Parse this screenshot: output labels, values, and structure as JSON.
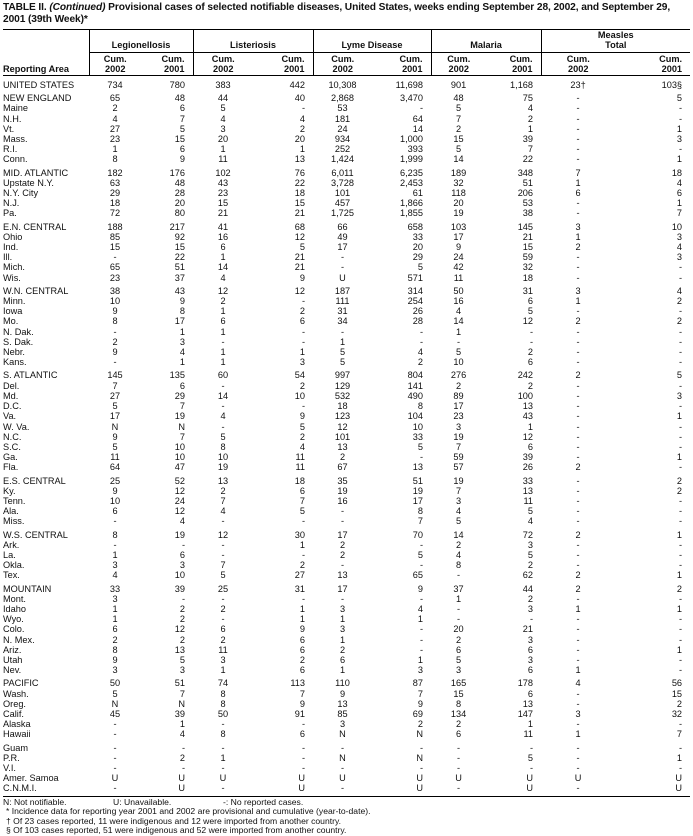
{
  "title": {
    "prefix": "TABLE II. ",
    "continued": "(Continued)",
    "text": " Provisional cases of selected notifiable diseases, United States, weeks ending September 28, 2002, and September 29, 2001 (39th Week)*"
  },
  "header": {
    "area_label": "Reporting Area",
    "diseases": [
      "Legionellosis",
      "Listeriosis",
      "Lyme Disease",
      "Malaria",
      "Measles\nTotal"
    ],
    "cum2002": "Cum.\n2002",
    "cum2001": "Cum.\n2001"
  },
  "groups": [
    [
      [
        "UNITED STATES",
        "734",
        "780",
        "383",
        "442",
        "10,308",
        "11,698",
        "901",
        "1,168",
        "23†",
        "103§"
      ]
    ],
    [
      [
        "NEW ENGLAND",
        "65",
        "48",
        "44",
        "40",
        "2,868",
        "3,470",
        "48",
        "75",
        "-",
        "5"
      ],
      [
        "Maine",
        "2",
        "6",
        "5",
        "-",
        "53",
        "-",
        "5",
        "4",
        "-",
        "-"
      ],
      [
        "N.H.",
        "4",
        "7",
        "4",
        "4",
        "181",
        "64",
        "7",
        "2",
        "-",
        "-"
      ],
      [
        "Vt.",
        "27",
        "5",
        "3",
        "2",
        "24",
        "14",
        "2",
        "1",
        "-",
        "1"
      ],
      [
        "Mass.",
        "23",
        "15",
        "20",
        "20",
        "934",
        "1,000",
        "15",
        "39",
        "-",
        "3"
      ],
      [
        "R.I.",
        "1",
        "6",
        "1",
        "1",
        "252",
        "393",
        "5",
        "7",
        "-",
        "-"
      ],
      [
        "Conn.",
        "8",
        "9",
        "11",
        "13",
        "1,424",
        "1,999",
        "14",
        "22",
        "-",
        "1"
      ]
    ],
    [
      [
        "MID. ATLANTIC",
        "182",
        "176",
        "102",
        "76",
        "6,011",
        "6,235",
        "189",
        "348",
        "7",
        "18"
      ],
      [
        "Upstate N.Y.",
        "63",
        "48",
        "43",
        "22",
        "3,728",
        "2,453",
        "32",
        "51",
        "1",
        "4"
      ],
      [
        "N.Y. City",
        "29",
        "28",
        "23",
        "18",
        "101",
        "61",
        "118",
        "206",
        "6",
        "6"
      ],
      [
        "N.J.",
        "18",
        "20",
        "15",
        "15",
        "457",
        "1,866",
        "20",
        "53",
        "-",
        "1"
      ],
      [
        "Pa.",
        "72",
        "80",
        "21",
        "21",
        "1,725",
        "1,855",
        "19",
        "38",
        "-",
        "7"
      ]
    ],
    [
      [
        "E.N. CENTRAL",
        "188",
        "217",
        "41",
        "68",
        "66",
        "658",
        "103",
        "145",
        "3",
        "10"
      ],
      [
        "Ohio",
        "85",
        "92",
        "16",
        "12",
        "49",
        "33",
        "17",
        "21",
        "1",
        "3"
      ],
      [
        "Ind.",
        "15",
        "15",
        "6",
        "5",
        "17",
        "20",
        "9",
        "15",
        "2",
        "4"
      ],
      [
        "Ill.",
        "-",
        "22",
        "1",
        "21",
        "-",
        "29",
        "24",
        "59",
        "-",
        "3"
      ],
      [
        "Mich.",
        "65",
        "51",
        "14",
        "21",
        "-",
        "5",
        "42",
        "32",
        "-",
        "-"
      ],
      [
        "Wis.",
        "23",
        "37",
        "4",
        "9",
        "U",
        "571",
        "11",
        "18",
        "-",
        "-"
      ]
    ],
    [
      [
        "W.N. CENTRAL",
        "38",
        "43",
        "12",
        "12",
        "187",
        "314",
        "50",
        "31",
        "3",
        "4"
      ],
      [
        "Minn.",
        "10",
        "9",
        "2",
        "-",
        "111",
        "254",
        "16",
        "6",
        "1",
        "2"
      ],
      [
        "Iowa",
        "9",
        "8",
        "1",
        "2",
        "31",
        "26",
        "4",
        "5",
        "-",
        "-"
      ],
      [
        "Mo.",
        "8",
        "17",
        "6",
        "6",
        "34",
        "28",
        "14",
        "12",
        "2",
        "2"
      ],
      [
        "N. Dak.",
        "-",
        "1",
        "1",
        "-",
        "-",
        "-",
        "1",
        "-",
        "-",
        "-"
      ],
      [
        "S. Dak.",
        "2",
        "3",
        "-",
        "-",
        "1",
        "-",
        "-",
        "-",
        "-",
        "-"
      ],
      [
        "Nebr.",
        "9",
        "4",
        "1",
        "1",
        "5",
        "4",
        "5",
        "2",
        "-",
        "-"
      ],
      [
        "Kans.",
        "-",
        "1",
        "1",
        "3",
        "5",
        "2",
        "10",
        "6",
        "-",
        "-"
      ]
    ],
    [
      [
        "S. ATLANTIC",
        "145",
        "135",
        "60",
        "54",
        "997",
        "804",
        "276",
        "242",
        "2",
        "5"
      ],
      [
        "Del.",
        "7",
        "6",
        "-",
        "2",
        "129",
        "141",
        "2",
        "2",
        "-",
        "-"
      ],
      [
        "Md.",
        "27",
        "29",
        "14",
        "10",
        "532",
        "490",
        "89",
        "100",
        "-",
        "3"
      ],
      [
        "D.C.",
        "5",
        "7",
        "-",
        "-",
        "18",
        "8",
        "17",
        "13",
        "-",
        "-"
      ],
      [
        "Va.",
        "17",
        "19",
        "4",
        "9",
        "123",
        "104",
        "23",
        "43",
        "-",
        "1"
      ],
      [
        "W. Va.",
        "N",
        "N",
        "-",
        "5",
        "12",
        "10",
        "3",
        "1",
        "-",
        "-"
      ],
      [
        "N.C.",
        "9",
        "7",
        "5",
        "2",
        "101",
        "33",
        "19",
        "12",
        "-",
        "-"
      ],
      [
        "S.C.",
        "5",
        "10",
        "8",
        "4",
        "13",
        "5",
        "7",
        "6",
        "-",
        "-"
      ],
      [
        "Ga.",
        "11",
        "10",
        "10",
        "11",
        "2",
        "-",
        "59",
        "39",
        "-",
        "1"
      ],
      [
        "Fla.",
        "64",
        "47",
        "19",
        "11",
        "67",
        "13",
        "57",
        "26",
        "2",
        "-"
      ]
    ],
    [
      [
        "E.S. CENTRAL",
        "25",
        "52",
        "13",
        "18",
        "35",
        "51",
        "19",
        "33",
        "-",
        "2"
      ],
      [
        "Ky.",
        "9",
        "12",
        "2",
        "6",
        "19",
        "19",
        "7",
        "13",
        "-",
        "2"
      ],
      [
        "Tenn.",
        "10",
        "24",
        "7",
        "7",
        "16",
        "17",
        "3",
        "11",
        "-",
        "-"
      ],
      [
        "Ala.",
        "6",
        "12",
        "4",
        "5",
        "-",
        "8",
        "4",
        "5",
        "-",
        "-"
      ],
      [
        "Miss.",
        "-",
        "4",
        "-",
        "-",
        "-",
        "7",
        "5",
        "4",
        "-",
        "-"
      ]
    ],
    [
      [
        "W.S. CENTRAL",
        "8",
        "19",
        "12",
        "30",
        "17",
        "70",
        "14",
        "72",
        "2",
        "1"
      ],
      [
        "Ark.",
        "-",
        "-",
        "-",
        "1",
        "2",
        "-",
        "2",
        "3",
        "-",
        "-"
      ],
      [
        "La.",
        "1",
        "6",
        "-",
        "-",
        "2",
        "5",
        "4",
        "5",
        "-",
        "-"
      ],
      [
        "Okla.",
        "3",
        "3",
        "7",
        "2",
        "-",
        "-",
        "8",
        "2",
        "-",
        "-"
      ],
      [
        "Tex.",
        "4",
        "10",
        "5",
        "27",
        "13",
        "65",
        "-",
        "62",
        "2",
        "1"
      ]
    ],
    [
      [
        "MOUNTAIN",
        "33",
        "39",
        "25",
        "31",
        "17",
        "9",
        "37",
        "44",
        "2",
        "2"
      ],
      [
        "Mont.",
        "3",
        "-",
        "-",
        "-",
        "-",
        "-",
        "1",
        "2",
        "-",
        "-"
      ],
      [
        "Idaho",
        "1",
        "2",
        "2",
        "1",
        "3",
        "4",
        "-",
        "3",
        "1",
        "1"
      ],
      [
        "Wyo.",
        "1",
        "2",
        "-",
        "1",
        "1",
        "1",
        "-",
        "-",
        "-",
        "-"
      ],
      [
        "Colo.",
        "6",
        "12",
        "6",
        "9",
        "3",
        "-",
        "20",
        "21",
        "-",
        "-"
      ],
      [
        "N. Mex.",
        "2",
        "2",
        "2",
        "6",
        "1",
        "-",
        "2",
        "3",
        "-",
        "-"
      ],
      [
        "Ariz.",
        "8",
        "13",
        "11",
        "6",
        "2",
        "-",
        "6",
        "6",
        "-",
        "1"
      ],
      [
        "Utah",
        "9",
        "5",
        "3",
        "2",
        "6",
        "1",
        "5",
        "3",
        "-",
        "-"
      ],
      [
        "Nev.",
        "3",
        "3",
        "1",
        "6",
        "1",
        "3",
        "3",
        "6",
        "1",
        "-"
      ]
    ],
    [
      [
        "PACIFIC",
        "50",
        "51",
        "74",
        "113",
        "110",
        "87",
        "165",
        "178",
        "4",
        "56"
      ],
      [
        "Wash.",
        "5",
        "7",
        "8",
        "7",
        "9",
        "7",
        "15",
        "6",
        "-",
        "15"
      ],
      [
        "Oreg.",
        "N",
        "N",
        "8",
        "9",
        "13",
        "9",
        "8",
        "13",
        "-",
        "2"
      ],
      [
        "Calif.",
        "45",
        "39",
        "50",
        "91",
        "85",
        "69",
        "134",
        "147",
        "3",
        "32"
      ],
      [
        "Alaska",
        "-",
        "1",
        "-",
        "-",
        "3",
        "2",
        "2",
        "1",
        "-",
        "-"
      ],
      [
        "Hawaii",
        "-",
        "4",
        "8",
        "6",
        "N",
        "N",
        "6",
        "11",
        "1",
        "7"
      ]
    ],
    [
      [
        "Guam",
        "-",
        "-",
        "-",
        "-",
        "-",
        "-",
        "-",
        "-",
        "-",
        "-"
      ],
      [
        "P.R.",
        "-",
        "2",
        "1",
        "-",
        "N",
        "N",
        "-",
        "5",
        "-",
        "1"
      ],
      [
        "V.I.",
        "-",
        "-",
        "-",
        "-",
        "-",
        "-",
        "-",
        "-",
        "-",
        "-"
      ],
      [
        "Amer. Samoa",
        "U",
        "U",
        "U",
        "U",
        "U",
        "U",
        "U",
        "U",
        "U",
        "U"
      ],
      [
        "C.N.M.I.",
        "-",
        "U",
        "-",
        "U",
        "-",
        "U",
        "-",
        "U",
        "-",
        "U"
      ]
    ]
  ],
  "footnotes": {
    "legend": [
      "N: Not notifiable.",
      "U: Unavailable.",
      "-: No reported cases."
    ],
    "notes": [
      "* Incidence data for reporting year 2001 and 2002 are provisional and cumulative (year-to-date).",
      "† Of 23 cases reported, 11 were indigenous and 12 were imported from another country.",
      "§ Of 103 cases reported, 51 were indigenous and 52 were imported from another country."
    ]
  }
}
